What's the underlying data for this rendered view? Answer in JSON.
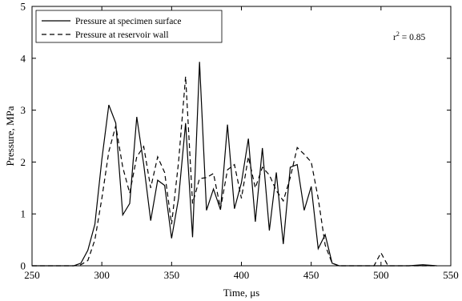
{
  "chart_data": {
    "type": "line",
    "xlabel": "Time, μs",
    "ylabel": "Pressure, MPa",
    "xlim": [
      250,
      550
    ],
    "ylim": [
      0,
      5
    ],
    "xticks": [
      250,
      300,
      350,
      400,
      450,
      500,
      550
    ],
    "yticks": [
      0,
      1,
      2,
      3,
      4,
      5
    ],
    "grid": false,
    "legend_position": "top-left",
    "annotation": {
      "text": "r",
      "sup": "2",
      "rest": " = 0.85"
    },
    "series": [
      {
        "name": "Pressure at specimen surface",
        "style": "solid",
        "color": "#000000",
        "x": [
          250,
          280,
          285,
          290,
          295,
          300,
          305,
          310,
          315,
          320,
          325,
          330,
          335,
          340,
          345,
          350,
          355,
          360,
          365,
          370,
          375,
          380,
          385,
          390,
          395,
          400,
          405,
          410,
          415,
          420,
          425,
          430,
          435,
          440,
          445,
          450,
          455,
          460,
          465,
          470,
          475,
          480,
          490,
          495,
          500,
          505,
          510,
          520,
          530,
          540
        ],
        "y": [
          0,
          0,
          0.05,
          0.3,
          0.8,
          2.05,
          3.1,
          2.75,
          0.98,
          1.2,
          2.87,
          1.95,
          0.87,
          1.65,
          1.55,
          0.53,
          1.3,
          2.75,
          0.55,
          3.93,
          1.07,
          1.48,
          1.08,
          2.72,
          1.1,
          1.6,
          2.45,
          0.85,
          2.27,
          0.68,
          1.8,
          0.42,
          1.9,
          1.95,
          1.07,
          1.53,
          0.33,
          0.6,
          0.05,
          0,
          0,
          0,
          0,
          0,
          0,
          0,
          0,
          0,
          0.02,
          0
        ]
      },
      {
        "name": "Pressure at reservoir wall",
        "style": "dashed",
        "color": "#000000",
        "x": [
          250,
          280,
          285,
          290,
          295,
          300,
          305,
          310,
          315,
          320,
          325,
          330,
          335,
          340,
          345,
          350,
          355,
          360,
          365,
          370,
          375,
          380,
          385,
          390,
          395,
          400,
          405,
          410,
          415,
          420,
          425,
          430,
          435,
          440,
          445,
          450,
          455,
          460,
          465,
          470,
          475,
          480,
          490,
          495,
          500,
          505,
          510,
          520,
          530,
          540
        ],
        "y": [
          0,
          0,
          0.02,
          0.1,
          0.5,
          1.3,
          2.2,
          2.7,
          1.9,
          1.4,
          2.1,
          2.3,
          1.5,
          2.1,
          1.8,
          0.8,
          2.0,
          3.65,
          1.2,
          1.68,
          1.7,
          1.78,
          1.1,
          1.85,
          1.95,
          1.3,
          2.1,
          1.5,
          1.9,
          1.75,
          1.45,
          1.25,
          1.7,
          2.28,
          2.15,
          2.0,
          1.3,
          0.4,
          0.05,
          0,
          0,
          0,
          0,
          0,
          0.25,
          0,
          0,
          0,
          0,
          0
        ]
      }
    ]
  }
}
